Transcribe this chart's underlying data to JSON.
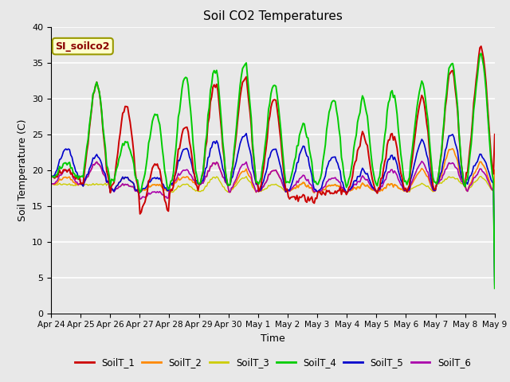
{
  "title": "Soil CO2 Temperatures",
  "xlabel": "Time",
  "ylabel": "Soil Temperature (C)",
  "annotation": "SI_soilco2",
  "ylim": [
    0,
    40
  ],
  "plot_bg_color": "#e8e8e8",
  "fig_bg_color": "#e8e8e8",
  "series_colors": {
    "SoilT_1": "#cc0000",
    "SoilT_2": "#ff8800",
    "SoilT_3": "#cccc00",
    "SoilT_4": "#00cc00",
    "SoilT_5": "#0000cc",
    "SoilT_6": "#aa00aa"
  },
  "x_tick_labels": [
    "Apr 24",
    "Apr 25",
    "Apr 26",
    "Apr 27",
    "Apr 28",
    "Apr 29",
    "Apr 30",
    "May 1",
    "May 2",
    "May 3",
    "May 4",
    "May 5",
    "May 6",
    "May 7",
    "May 8",
    "May 9"
  ],
  "yticks": [
    0,
    5,
    10,
    15,
    20,
    25,
    30,
    35,
    40
  ],
  "n_points": 360
}
